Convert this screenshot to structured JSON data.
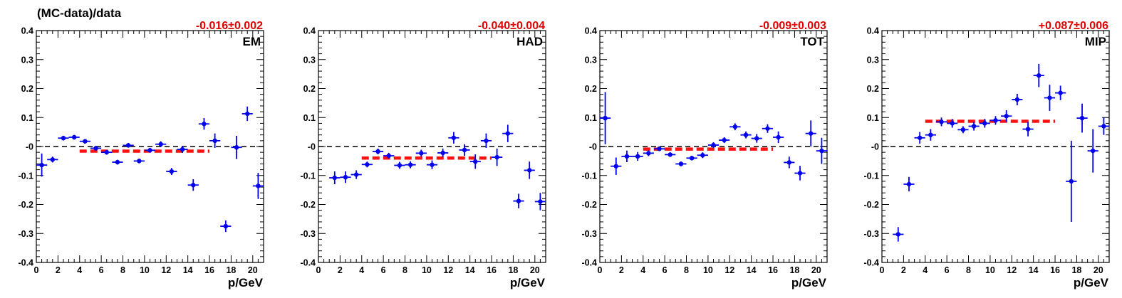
{
  "figure": {
    "ylabel": "(MC-data)/data",
    "xlabel": "p/GeV"
  },
  "chart_data": [
    {
      "type": "scatter",
      "panel_label": "EM",
      "fit_label": "-0.016±0.002",
      "fit_value": -0.016,
      "fit_range": [
        4,
        16
      ],
      "xlim": [
        0,
        21
      ],
      "ylim": [
        -0.4,
        0.4
      ],
      "xticks": [
        "0",
        "2",
        "4",
        "6",
        "8",
        "10",
        "12",
        "14",
        "16",
        "18",
        "20"
      ],
      "yticks": [
        "-0.4",
        "-0.3",
        "-0.2",
        "-0.1",
        "-0",
        "0.1",
        "0.2",
        "0.3",
        "0.4"
      ],
      "x": [
        0.5,
        1.5,
        2.5,
        3.5,
        4.5,
        5.5,
        6.5,
        7.5,
        8.5,
        9.5,
        10.5,
        11.5,
        12.5,
        13.5,
        14.5,
        15.5,
        16.5,
        17.5,
        18.5,
        19.5,
        20.5
      ],
      "y": [
        -0.064,
        -0.045,
        0.029,
        0.032,
        0.018,
        -0.006,
        -0.02,
        -0.054,
        0.004,
        -0.05,
        -0.013,
        0.008,
        -0.086,
        -0.01,
        -0.133,
        0.078,
        0.02,
        -0.275,
        -0.003,
        0.113,
        -0.136
      ],
      "yerr": [
        0.04,
        0.01,
        0.008,
        0.008,
        0.008,
        0.008,
        0.008,
        0.008,
        0.008,
        0.008,
        0.008,
        0.01,
        0.012,
        0.012,
        0.02,
        0.02,
        0.025,
        0.02,
        0.04,
        0.025,
        0.045
      ]
    },
    {
      "type": "scatter",
      "panel_label": "HAD",
      "fit_label": "-0.040±0.004",
      "fit_value": -0.04,
      "fit_range": [
        4,
        16
      ],
      "xlim": [
        0,
        21
      ],
      "ylim": [
        -0.4,
        0.4
      ],
      "xticks": [
        "0",
        "2",
        "4",
        "6",
        "8",
        "10",
        "12",
        "14",
        "16",
        "18",
        "20"
      ],
      "yticks": [
        "-0.4",
        "-0.3",
        "-0.2",
        "-0.1",
        "-0",
        "0.1",
        "0.2",
        "0.3",
        "0.4"
      ],
      "x": [
        1.5,
        2.5,
        3.5,
        4.5,
        5.5,
        6.5,
        7.5,
        8.5,
        9.5,
        10.5,
        11.5,
        12.5,
        13.5,
        14.5,
        15.5,
        16.5,
        17.5,
        18.5,
        19.5,
        20.5
      ],
      "y": [
        -0.108,
        -0.106,
        -0.097,
        -0.062,
        -0.017,
        -0.032,
        -0.065,
        -0.063,
        -0.023,
        -0.063,
        -0.022,
        0.03,
        -0.012,
        -0.052,
        0.02,
        -0.037,
        0.045,
        -0.188,
        -0.082,
        -0.19
      ],
      "yerr": [
        0.022,
        0.02,
        0.015,
        0.01,
        0.01,
        0.01,
        0.012,
        0.012,
        0.012,
        0.015,
        0.015,
        0.02,
        0.02,
        0.025,
        0.025,
        0.03,
        0.03,
        0.025,
        0.03,
        0.03
      ]
    },
    {
      "type": "scatter",
      "panel_label": "TOT",
      "fit_label": "-0.009±0.003",
      "fit_value": -0.009,
      "fit_range": [
        4,
        16
      ],
      "xlim": [
        0,
        21
      ],
      "ylim": [
        -0.4,
        0.4
      ],
      "xticks": [
        "0",
        "2",
        "4",
        "6",
        "8",
        "10",
        "12",
        "14",
        "16",
        "18",
        "20"
      ],
      "yticks": [
        "-0.4",
        "-0.3",
        "-0.2",
        "-0.1",
        "-0",
        "0.1",
        "0.2",
        "0.3",
        "0.4"
      ],
      "x": [
        0.5,
        1.5,
        2.5,
        3.5,
        4.5,
        5.5,
        6.5,
        7.5,
        8.5,
        9.5,
        10.5,
        11.5,
        12.5,
        13.5,
        14.5,
        15.5,
        16.5,
        17.5,
        18.5,
        19.5,
        20.5
      ],
      "y": [
        0.098,
        -0.068,
        -0.034,
        -0.034,
        -0.023,
        -0.008,
        -0.028,
        -0.06,
        -0.04,
        -0.03,
        0.005,
        0.022,
        0.068,
        0.04,
        0.028,
        0.062,
        0.032,
        -0.055,
        -0.092,
        0.045,
        -0.015
      ],
      "yerr": [
        0.09,
        0.03,
        0.02,
        0.015,
        0.01,
        0.008,
        0.008,
        0.008,
        0.008,
        0.01,
        0.01,
        0.01,
        0.012,
        0.012,
        0.015,
        0.015,
        0.02,
        0.02,
        0.025,
        0.045,
        0.045
      ]
    },
    {
      "type": "scatter",
      "panel_label": "MIP",
      "fit_label": "+0.087±0.006",
      "fit_value": 0.087,
      "fit_range": [
        4,
        16
      ],
      "xlim": [
        0,
        21
      ],
      "ylim": [
        -0.4,
        0.4
      ],
      "xticks": [
        "0",
        "2",
        "4",
        "6",
        "8",
        "10",
        "12",
        "14",
        "16",
        "18",
        "20"
      ],
      "yticks": [
        "-0.4",
        "-0.3",
        "-0.2",
        "-0.1",
        "-0",
        "0.1",
        "0.2",
        "0.3",
        "0.4"
      ],
      "x": [
        1.5,
        2.5,
        3.5,
        4.5,
        5.5,
        6.5,
        7.5,
        8.5,
        9.5,
        10.5,
        11.5,
        12.5,
        13.5,
        14.5,
        15.5,
        16.5,
        17.5,
        18.5,
        19.5,
        20.5
      ],
      "y": [
        -0.303,
        -0.13,
        0.03,
        0.04,
        0.085,
        0.08,
        0.058,
        0.07,
        0.08,
        0.09,
        0.105,
        0.162,
        0.06,
        0.245,
        0.168,
        0.185,
        -0.12,
        0.098,
        -0.015,
        0.07
      ],
      "yerr": [
        0.025,
        0.025,
        0.02,
        0.02,
        0.015,
        0.015,
        0.012,
        0.015,
        0.015,
        0.015,
        0.02,
        0.02,
        0.025,
        0.04,
        0.045,
        0.025,
        0.14,
        0.05,
        0.075,
        0.03
      ]
    }
  ]
}
